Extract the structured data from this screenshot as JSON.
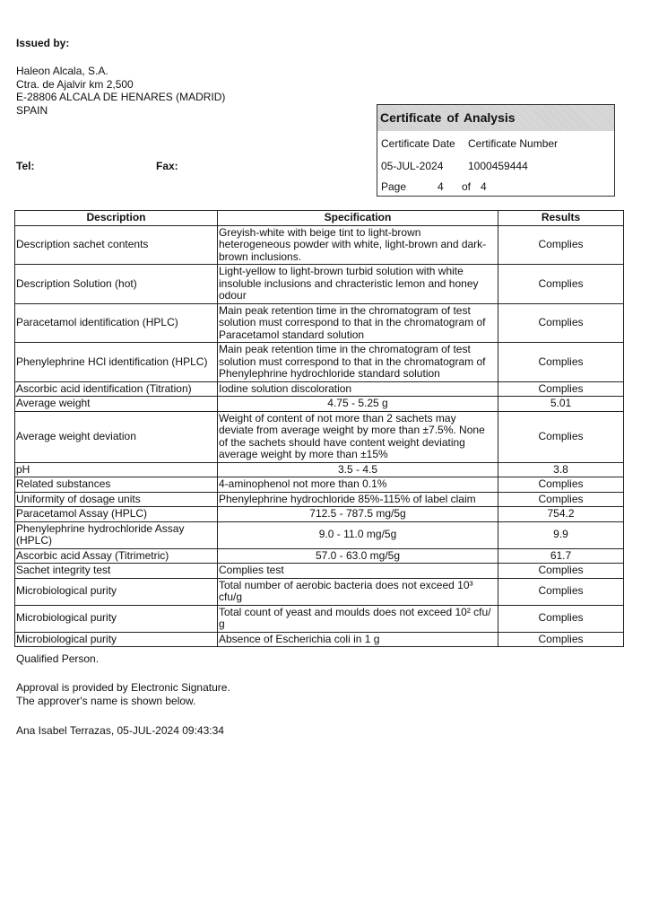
{
  "issuer": {
    "label": "Issued by:",
    "address_lines": [
      "Haleon Alcala, S.A.",
      "Ctra. de Ajalvir km 2,500",
      "E-28806 ALCALA DE HENARES (MADRID)",
      "SPAIN"
    ],
    "tel_label": "Tel:",
    "fax_label": "Fax:"
  },
  "certificate": {
    "title": "Certificate of  Analysis",
    "date_label": "Certificate Date",
    "number_label": "Certificate Number",
    "date": "05-JUL-2024",
    "number": "1000459444",
    "page_label": "Page",
    "page": "4",
    "of_label": "of",
    "total_pages": "4"
  },
  "table": {
    "headers": [
      "Description",
      "Specification",
      "Results"
    ],
    "rows": [
      {
        "description": "Description sachet contents",
        "specification": "Greyish-white with beige tint to light-brown\nheterogeneous powder with white, light-brown and dark-\nbrown inclusions.",
        "result": "Complies",
        "center_spec": false
      },
      {
        "description": "Description Solution (hot)",
        "specification": "Light-yellow to light-brown turbid solution with white\ninsoluble inclusions and chracteristic lemon and honey\nodour",
        "result": "Complies",
        "center_spec": false
      },
      {
        "description": "Paracetamol identification (HPLC)",
        "specification": "Main peak retention time in the chromatogram of test\nsolution must correspond to that in the chromatogram of\nParacetamol standard solution",
        "result": "Complies",
        "center_spec": false
      },
      {
        "description": "Phenylephrine HCl identification (HPLC)",
        "specification": "Main peak retention time in the chromatogram of test\nsolution must correspond to that in the chromatogram of\nPhenylephrine hydrochloride standard solution",
        "result": "Complies",
        "center_spec": false
      },
      {
        "description": "Ascorbic acid identification (Titration)",
        "specification": "Iodine solution discoloration",
        "result": "Complies",
        "center_spec": false
      },
      {
        "description": "Average weight",
        "specification": "4.75 - 5.25 g",
        "result": "5.01",
        "center_spec": true
      },
      {
        "description": "Average weight deviation",
        "specification": "Weight of content of not more than 2 sachets may\ndeviate from average weight by more than ±7.5%. None\nof the sachets should have content weight deviating\naverage weight by more than ±15%",
        "result": "Complies",
        "center_spec": false
      },
      {
        "description": "pH",
        "specification": "3.5 - 4.5",
        "result": "3.8",
        "center_spec": true
      },
      {
        "description": "Related substances",
        "specification": "4-aminophenol not more than 0.1%",
        "result": "Complies",
        "center_spec": false
      },
      {
        "description": "Uniformity of dosage units",
        "specification": "Phenylephrine hydrochloride 85%-115% of label claim",
        "result": "Complies",
        "center_spec": false
      },
      {
        "description": "Paracetamol Assay  (HPLC)",
        "specification": "712.5 - 787.5 mg/5g",
        "result": "754.2",
        "center_spec": true
      },
      {
        "description": "Phenylephrine hydrochloride Assay\n(HPLC)",
        "specification": "9.0 - 11.0 mg/5g",
        "result": "9.9",
        "center_spec": true
      },
      {
        "description": "Ascorbic acid Assay (Titrimetric)",
        "specification": "57.0 - 63.0 mg/5g",
        "result": "61.7",
        "center_spec": true
      },
      {
        "description": "Sachet integrity test",
        "specification": "Complies test",
        "result": "Complies",
        "center_spec": false
      },
      {
        "description": "Microbiological purity",
        "specification": "Total number of aerobic bacteria does not exceed 10³\ncfu/g",
        "result": "Complies",
        "center_spec": false
      },
      {
        "description": "Microbiological purity",
        "specification": "Total count of yeast and moulds does not exceed 10² cfu/\ng",
        "result": "Complies",
        "center_spec": false
      },
      {
        "description": "Microbiological purity",
        "specification": "Absence of Escherichia coli in 1 g",
        "result": "Complies",
        "center_spec": false
      }
    ]
  },
  "footer": {
    "qualified_person": "Qualified Person.",
    "approval_lines": [
      "Approval is provided by Electronic Signature.",
      "The approver's name is shown below."
    ],
    "signature": "Ana Isabel Terrazas, 05-JUL-2024 09:43:34"
  }
}
